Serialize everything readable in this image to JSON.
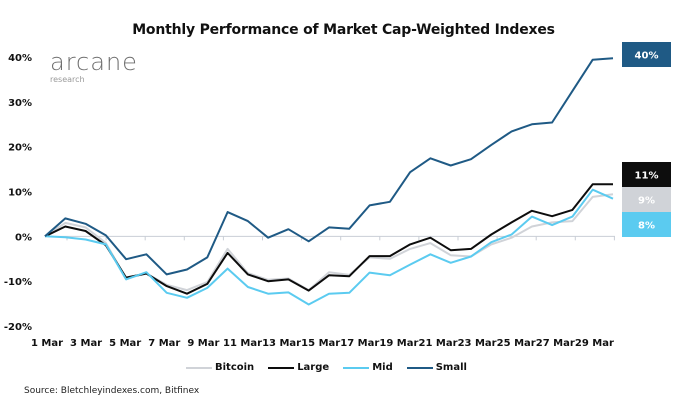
{
  "logo": {
    "main": "arcane",
    "sub": "research"
  },
  "source": "Source: Bletchleyindexes.com, Bitfinex",
  "chart_data": {
    "type": "line",
    "title": "Monthly Performance of Market Cap-Weighted Indexes",
    "xlabel": "",
    "ylabel": "",
    "ylim": [
      -20,
      40
    ],
    "yticks": [
      -20,
      -10,
      0,
      10,
      20,
      30,
      40
    ],
    "ytick_labels": [
      "-20%",
      "-10%",
      "0%",
      "10%",
      "20%",
      "30%",
      "40%"
    ],
    "grid": false,
    "legend_position": "bottom",
    "x": [
      "1 Mar",
      "2 Mar",
      "3 Mar",
      "4 Mar",
      "5 Mar",
      "6 Mar",
      "7 Mar",
      "8 Mar",
      "9 Mar",
      "10 Mar",
      "11 Mar",
      "12 Mar",
      "13 Mar",
      "14 Mar",
      "15 Mar",
      "16 Mar",
      "17 Mar",
      "18 Mar",
      "19 Mar",
      "20 Mar",
      "21 Mar",
      "22 Mar",
      "23 Mar",
      "24 Mar",
      "25 Mar",
      "26 Mar",
      "27 Mar",
      "28 Mar",
      "29 Mar"
    ],
    "xtick_labels": [
      "1 Mar",
      "3 Mar",
      "5 Mar",
      "7 Mar",
      "9 Mar",
      "11 Mar",
      "13 Mar",
      "15 Mar",
      "17 Mar",
      "19 Mar",
      "21 Mar",
      "23 Mar",
      "25 Mar",
      "27 Mar",
      "29 Mar"
    ],
    "series": [
      {
        "name": "Bitcoin",
        "color": "#d0d3d8",
        "end_label": "9%",
        "end_label_text_color": "#ffffff",
        "values": [
          0,
          3.0,
          2.0,
          -1.5,
          -9.4,
          -8.3,
          -10.8,
          -12.0,
          -10.2,
          -2.8,
          -8.2,
          -9.7,
          -9.4,
          -12.0,
          -8.0,
          -8.6,
          -4.7,
          -5.0,
          -2.8,
          -1.5,
          -4.2,
          -4.5,
          -1.8,
          -0.3,
          2.2,
          3.1,
          3.4,
          8.8,
          9.4
        ]
      },
      {
        "name": "Large",
        "color": "#0d0d0d",
        "end_label": "11%",
        "end_label_text_color": "#ffffff",
        "values": [
          0,
          2.2,
          1.2,
          -2.0,
          -9.2,
          -8.3,
          -11.1,
          -12.8,
          -10.6,
          -3.7,
          -8.5,
          -10.0,
          -9.6,
          -12.1,
          -8.7,
          -8.9,
          -4.4,
          -4.4,
          -1.8,
          -0.3,
          -3.1,
          -2.8,
          0.4,
          3.1,
          5.7,
          4.5,
          5.9,
          11.6,
          11.6
        ]
      },
      {
        "name": "Mid",
        "color": "#5bcbf0",
        "end_label": "8%",
        "end_label_text_color": "#ffffff",
        "values": [
          0,
          -0.2,
          -0.7,
          -1.8,
          -9.6,
          -8.0,
          -12.6,
          -13.7,
          -11.5,
          -7.2,
          -11.3,
          -12.8,
          -12.5,
          -15.2,
          -12.8,
          -12.6,
          -8.1,
          -8.7,
          -6.3,
          -4.0,
          -5.9,
          -4.5,
          -1.3,
          0.4,
          4.4,
          2.5,
          4.4,
          10.4,
          8.4
        ]
      },
      {
        "name": "Small",
        "color": "#1f5a85",
        "end_label": "40%",
        "end_label_text_color": "#ffffff",
        "values": [
          0,
          4.0,
          2.8,
          0.2,
          -5.1,
          -4.0,
          -8.5,
          -7.4,
          -4.7,
          5.4,
          3.4,
          -0.3,
          1.6,
          -1.1,
          2.0,
          1.7,
          6.9,
          7.7,
          14.3,
          17.4,
          15.8,
          17.2,
          20.4,
          23.4,
          25.0,
          25.4,
          32.4,
          39.4,
          39.7
        ]
      }
    ],
    "end_label_order": [
      "Small",
      "Large",
      "Bitcoin",
      "Mid"
    ]
  }
}
